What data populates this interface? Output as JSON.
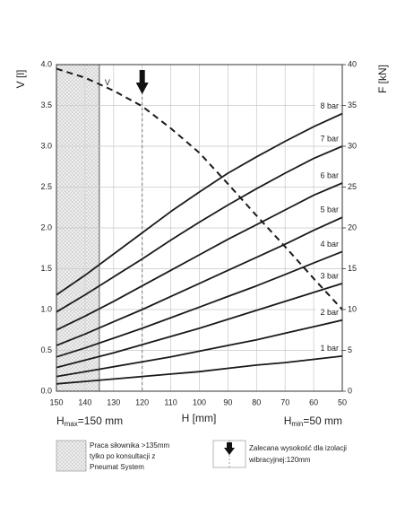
{
  "chart_data": {
    "type": "line",
    "x_label": "H [mm]",
    "y_label": "V [l]",
    "y2_label": "F [kN]",
    "x": [
      150,
      140,
      130,
      120,
      110,
      100,
      90,
      80,
      70,
      60,
      50
    ],
    "xlim": [
      150,
      50
    ],
    "xticks": [
      150,
      140,
      130,
      120,
      110,
      100,
      90,
      80,
      70,
      60,
      50
    ],
    "ylim": [
      0,
      4
    ],
    "yticks": [
      {
        "value": 0,
        "label": "0.0"
      },
      0.5,
      {
        "value": 1,
        "label": "1.0"
      },
      1.5,
      {
        "value": 2,
        "label": "2.0"
      },
      2.5,
      {
        "value": 3,
        "label": "3.0"
      },
      3.5,
      {
        "value": 4,
        "label": "4.0"
      }
    ],
    "y2lim": [
      0,
      40
    ],
    "y2ticks": [
      0,
      5,
      10,
      15,
      20,
      25,
      30,
      35,
      40
    ],
    "grid": true,
    "series": [
      {
        "name": "V",
        "color": "#1a1a1a",
        "dashed": true,
        "values": [
          3.95,
          3.84,
          3.68,
          3.49,
          3.22,
          2.92,
          2.54,
          2.15,
          1.77,
          1.38,
          1.0
        ]
      },
      {
        "name": "8 bar",
        "color": "#1a1a1a",
        "axis": "y2",
        "values": [
          11.8,
          14.2,
          16.8,
          19.4,
          22.0,
          24.4,
          26.7,
          28.7,
          30.6,
          32.4,
          34.0
        ]
      },
      {
        "name": "7 bar",
        "color": "#1a1a1a",
        "axis": "y2",
        "values": [
          9.7,
          11.8,
          14.0,
          16.2,
          18.5,
          20.7,
          22.8,
          24.8,
          26.7,
          28.5,
          30.0
        ]
      },
      {
        "name": "6 bar",
        "color": "#1a1a1a",
        "axis": "y2",
        "values": [
          7.5,
          9.2,
          11.0,
          12.9,
          14.8,
          16.7,
          18.6,
          20.4,
          22.2,
          24.0,
          25.5
        ]
      },
      {
        "name": "5 bar",
        "color": "#1a1a1a",
        "axis": "y2",
        "values": [
          5.6,
          7.0,
          8.5,
          10.0,
          11.6,
          13.2,
          14.8,
          16.4,
          18.0,
          19.7,
          21.3
        ]
      },
      {
        "name": "4 bar",
        "color": "#1a1a1a",
        "axis": "y2",
        "values": [
          4.2,
          5.3,
          6.5,
          7.7,
          9.0,
          10.3,
          11.6,
          12.9,
          14.3,
          15.7,
          17.1
        ]
      },
      {
        "name": "3 bar",
        "color": "#1a1a1a",
        "axis": "y2",
        "values": [
          2.9,
          3.8,
          4.7,
          5.7,
          6.7,
          7.7,
          8.8,
          9.9,
          11.0,
          12.1,
          13.2
        ]
      },
      {
        "name": "2 bar",
        "color": "#1a1a1a",
        "axis": "y2",
        "values": [
          1.8,
          2.4,
          3.0,
          3.6,
          4.2,
          4.9,
          5.6,
          6.3,
          7.1,
          7.9,
          8.7
        ]
      },
      {
        "name": "1 bar",
        "color": "#1a1a1a",
        "axis": "y2",
        "values": [
          0.9,
          1.2,
          1.5,
          1.8,
          2.1,
          2.4,
          2.8,
          3.2,
          3.5,
          3.9,
          4.3
        ]
      }
    ],
    "shaded_region": [
      150,
      135
    ],
    "recommended_height": 120,
    "h_max": {
      "base": "H",
      "sub": "max",
      "rest": "=150 mm"
    },
    "h_min": {
      "base": "H",
      "sub": "min",
      "rest": "=50 mm"
    },
    "legend": {
      "shaded": [
        "Praca siłownika >135mm",
        "tylko po konsultacji z",
        "Pneumat System"
      ],
      "arrow": [
        "Zalecana wysokość dla izolacji",
        "wibracyjnej:120mm"
      ]
    }
  }
}
